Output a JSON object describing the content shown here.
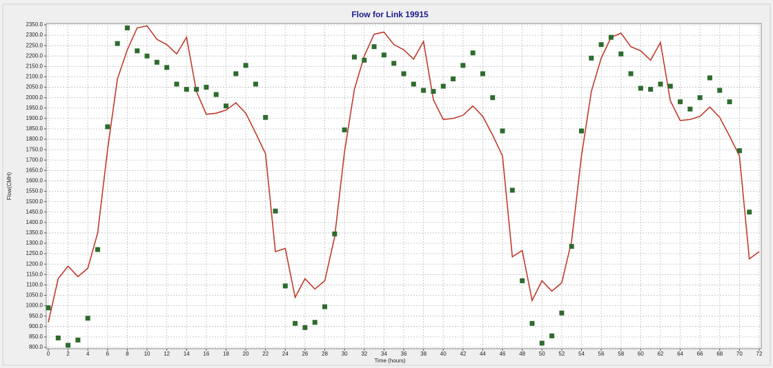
{
  "chart_data": {
    "type": "line",
    "title": "Flow for Link 19915",
    "xlabel": "Time (hours)",
    "ylabel": "Flow(CMH)",
    "xlim": [
      0,
      72
    ],
    "xticks": [
      0,
      2,
      4,
      6,
      8,
      10,
      12,
      14,
      16,
      18,
      20,
      22,
      24,
      26,
      28,
      30,
      32,
      34,
      36,
      38,
      40,
      42,
      44,
      46,
      48,
      50,
      52,
      54,
      56,
      58,
      60,
      62,
      64,
      66,
      68,
      70,
      72
    ],
    "ylim": [
      800,
      2350
    ],
    "yticks": [
      {
        "value": 800,
        "label": "800.0"
      },
      {
        "value": 850,
        "label": "850.0"
      },
      {
        "value": 900,
        "label": "900.0"
      },
      {
        "value": 950,
        "label": "950.0"
      },
      {
        "value": 1000,
        "label": "1000.0"
      },
      {
        "value": 1050,
        "label": "1050.0"
      },
      {
        "value": 1100,
        "label": "1100.0"
      },
      {
        "value": 1150,
        "label": "1150.0"
      },
      {
        "value": 1200,
        "label": "1200.0"
      },
      {
        "value": 1250,
        "label": "1250.0"
      },
      {
        "value": 1300,
        "label": "1300.0"
      },
      {
        "value": 1350,
        "label": "1350.0"
      },
      {
        "value": 1400,
        "label": "1400.0"
      },
      {
        "value": 1450,
        "label": "1450.0"
      },
      {
        "value": 1500,
        "label": "1500.0"
      },
      {
        "value": 1550,
        "label": "1550.0"
      },
      {
        "value": 1600,
        "label": "1600.0"
      },
      {
        "value": 1650,
        "label": "1650.0"
      },
      {
        "value": 1700,
        "label": "1700.0"
      },
      {
        "value": 1750,
        "label": "1750.0"
      },
      {
        "value": 1800,
        "label": "1800.0"
      },
      {
        "value": 1850,
        "label": "1850.0"
      },
      {
        "value": 1900,
        "label": "1900.0"
      },
      {
        "value": 1950,
        "label": "1950.0"
      },
      {
        "value": 2000,
        "label": "2000.0"
      },
      {
        "value": 2050,
        "label": "2050.0"
      },
      {
        "value": 2100,
        "label": "2100.0"
      },
      {
        "value": 2150,
        "label": "2150.0"
      },
      {
        "value": 2200,
        "label": "2200.0"
      },
      {
        "value": 2250,
        "label": "2250.0"
      },
      {
        "value": 2300,
        "label": "2300.0"
      },
      {
        "value": 2350,
        "label": "2350.0"
      }
    ],
    "grid": true,
    "series": [
      {
        "style": "line",
        "color": "#c0392b",
        "x": [
          0,
          1,
          2,
          3,
          4,
          5,
          6,
          7,
          8,
          9,
          10,
          11,
          12,
          13,
          14,
          15,
          16,
          17,
          18,
          19,
          20,
          21,
          22,
          23,
          24,
          25,
          26,
          27,
          28,
          29,
          30,
          31,
          32,
          33,
          34,
          35,
          36,
          37,
          38,
          39,
          40,
          41,
          42,
          43,
          44,
          45,
          46,
          47,
          48,
          49,
          50,
          51,
          52,
          53,
          54,
          55,
          56,
          57,
          58,
          59,
          60,
          61,
          62,
          63,
          64,
          65,
          66,
          67,
          68,
          69,
          70,
          71,
          72
        ],
        "values": [
          920,
          1130,
          1190,
          1140,
          1180,
          1350,
          1750,
          2090,
          2230,
          2335,
          2345,
          2280,
          2255,
          2210,
          2290,
          2030,
          1920,
          1925,
          1940,
          1975,
          1925,
          1830,
          1730,
          1260,
          1275,
          1040,
          1130,
          1080,
          1120,
          1330,
          1740,
          2040,
          2200,
          2305,
          2315,
          2255,
          2230,
          2185,
          2270,
          1990,
          1895,
          1900,
          1915,
          1960,
          1910,
          1820,
          1720,
          1235,
          1265,
          1025,
          1120,
          1070,
          1110,
          1310,
          1720,
          2030,
          2190,
          2290,
          2310,
          2245,
          2225,
          2180,
          2265,
          1985,
          1890,
          1895,
          1910,
          1955,
          1905,
          1815,
          1720,
          1225,
          1260
        ]
      },
      {
        "style": "markers",
        "color": "#2e6b2e",
        "x": [
          0,
          1,
          2,
          3,
          4,
          5,
          6,
          7,
          8,
          9,
          10,
          11,
          12,
          13,
          14,
          15,
          16,
          17,
          18,
          19,
          20,
          21,
          22,
          23,
          24,
          25,
          26,
          27,
          28,
          29,
          30,
          31,
          32,
          33,
          34,
          35,
          36,
          37,
          38,
          39,
          40,
          41,
          42,
          43,
          44,
          45,
          46,
          47,
          48,
          49,
          50,
          51,
          52,
          53,
          54,
          55,
          56,
          57,
          58,
          59,
          60,
          61,
          62,
          63,
          64,
          65,
          66,
          67,
          68,
          69,
          70,
          71
        ],
        "values": [
          990,
          845,
          810,
          835,
          940,
          1270,
          1860,
          2260,
          2335,
          2225,
          2200,
          2170,
          2145,
          2065,
          2040,
          2040,
          2050,
          2015,
          1960,
          2115,
          2155,
          2065,
          1905,
          1455,
          1095,
          915,
          895,
          920,
          995,
          1345,
          1845,
          2195,
          2180,
          2245,
          2205,
          2165,
          2115,
          2065,
          2035,
          2030,
          2055,
          2090,
          2155,
          2215,
          2115,
          2000,
          1840,
          1555,
          1120,
          915,
          820,
          855,
          965,
          1285,
          1840,
          2190,
          2255,
          2290,
          2210,
          2115,
          2045,
          2040,
          2065,
          2055,
          1980,
          1945,
          2000,
          2095,
          2035,
          1980,
          1745,
          1450
        ]
      }
    ]
  }
}
